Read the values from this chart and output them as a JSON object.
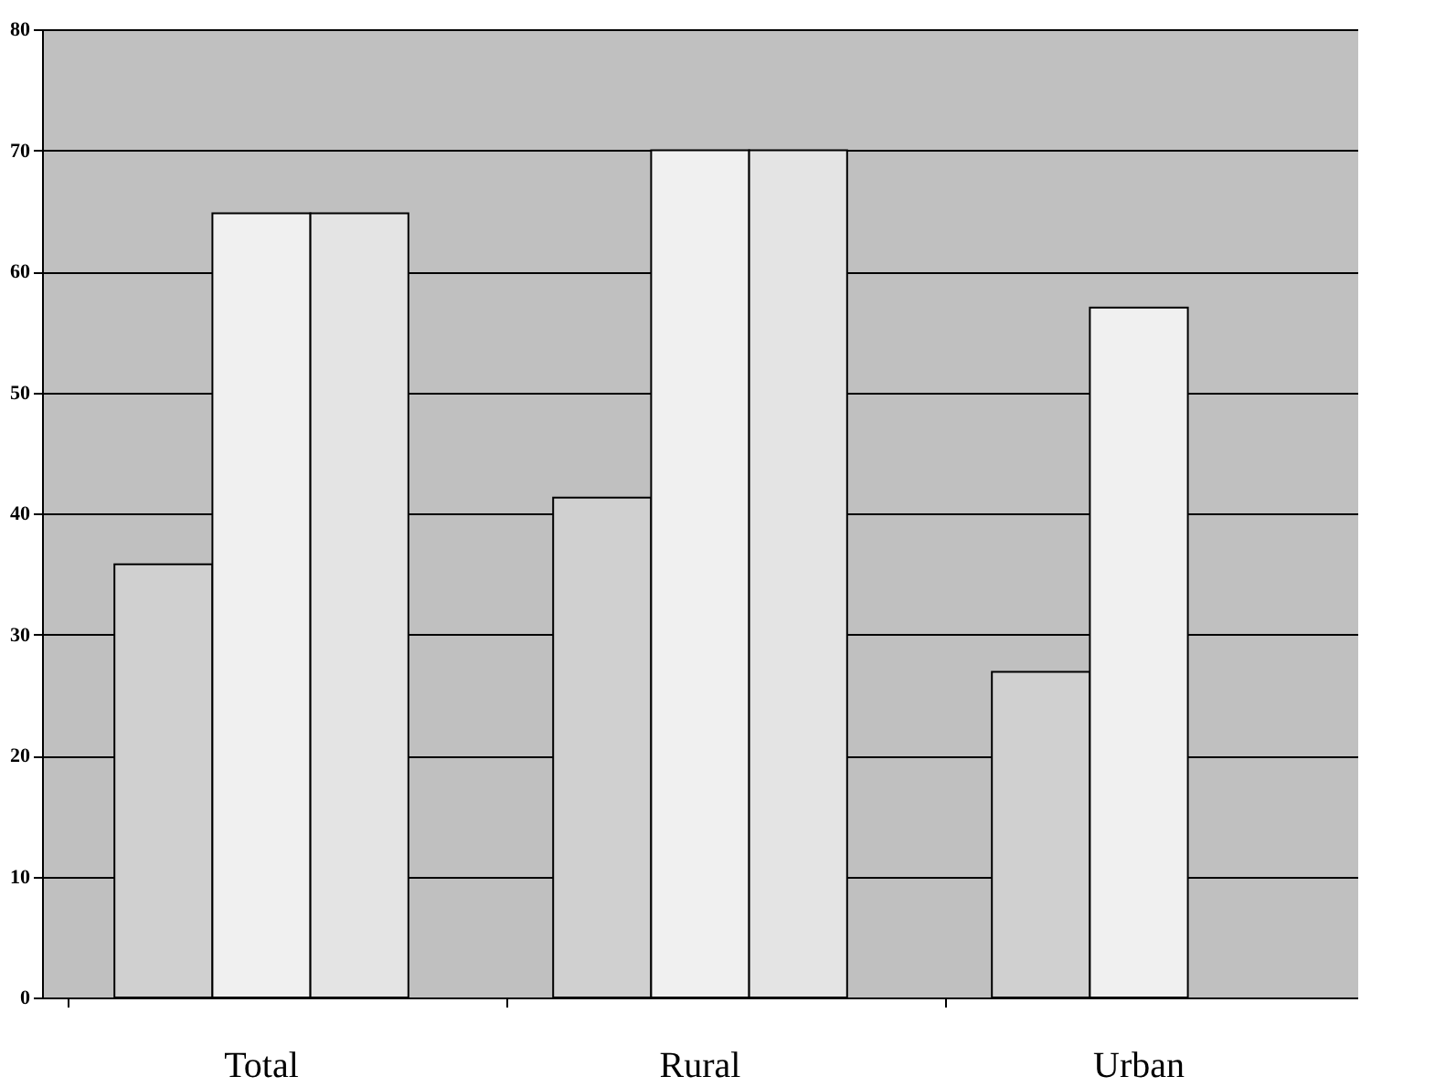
{
  "chart_data": {
    "type": "bar",
    "categories": [
      "Total",
      "Rural",
      "Urban"
    ],
    "series": [
      {
        "color": "#d0d0d0",
        "values": [
          35.8,
          41.3,
          26.9
        ]
      },
      {
        "color": "#f0f0f0",
        "values": [
          64.8,
          70,
          57
        ]
      },
      {
        "color": "#e4e4e4",
        "values": [
          64.8,
          70,
          null
        ]
      }
    ],
    "ylim": [
      0,
      80
    ],
    "yticks": [
      0,
      10,
      20,
      30,
      40,
      50,
      60,
      70,
      80
    ],
    "grid": "y",
    "legend": false
  }
}
